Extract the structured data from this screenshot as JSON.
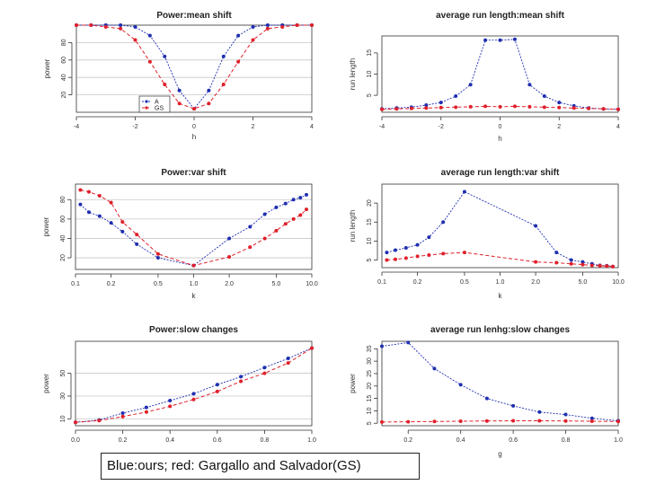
{
  "caption": "Blue:ours; red: Gargallo and Salvador(GS)",
  "colors": {
    "ours": "#1f2fb0",
    "gs": "#e0202a"
  },
  "chart_data": [
    {
      "type": "line",
      "title": "Power:mean shift",
      "xlabel": "h",
      "ylabel": "power",
      "x": [
        -4,
        -3.5,
        -3,
        -2.5,
        -2,
        -1.5,
        -1,
        -0.5,
        0,
        0.5,
        1,
        1.5,
        2,
        2.5,
        3,
        3.5,
        4
      ],
      "xlim": [
        -4,
        4
      ],
      "ylim": [
        0,
        100
      ],
      "xticks": [
        -4,
        -2,
        0,
        2,
        4
      ],
      "xtick_labels": [
        "-4",
        "-2",
        "0",
        "2",
        "4"
      ],
      "yticks": [
        20,
        40,
        60,
        80
      ],
      "ytick_labels": [
        "20",
        "40",
        "60",
        "80"
      ],
      "grid": true,
      "legend": {
        "position": "bottom-left",
        "entries": [
          "A",
          "GS"
        ]
      },
      "series": [
        {
          "name": "A",
          "values": [
            100,
            100,
            100,
            100,
            98,
            88,
            64,
            25,
            4,
            25,
            64,
            88,
            98,
            100,
            100,
            100,
            100
          ]
        },
        {
          "name": "GS",
          "values": [
            100,
            100,
            98,
            96,
            83,
            58,
            32,
            10,
            4,
            10,
            32,
            58,
            83,
            96,
            98,
            100,
            100
          ]
        }
      ]
    },
    {
      "type": "line",
      "title": "average run length:mean shift",
      "xlabel": "h",
      "ylabel": "run length",
      "x": [
        -4,
        -3.5,
        -3,
        -2.5,
        -2,
        -1.5,
        -1,
        -0.5,
        0,
        0.5,
        1,
        1.5,
        2,
        2.5,
        3,
        3.5,
        4
      ],
      "xlim": [
        -4,
        4
      ],
      "ylim": [
        1,
        19
      ],
      "xticks": [
        -4,
        -2,
        0,
        2,
        4
      ],
      "xtick_labels": [
        "-4",
        "-2",
        "0",
        "2",
        "4"
      ],
      "yticks": [
        5,
        10,
        15
      ],
      "ytick_labels": [
        "5",
        "10",
        "15"
      ],
      "grid": false,
      "series": [
        {
          "values": [
            1.8,
            2.0,
            2.2,
            2.7,
            3.3,
            4.8,
            7.5,
            18,
            18,
            18.2,
            7.5,
            4.8,
            3.3,
            2.5,
            2.0,
            1.8,
            1.7
          ]
        },
        {
          "values": [
            1.7,
            1.8,
            1.9,
            2.0,
            2.1,
            2.2,
            2.3,
            2.4,
            2.3,
            2.4,
            2.3,
            2.2,
            2.1,
            2.0,
            1.9,
            1.8,
            1.7
          ]
        }
      ]
    },
    {
      "type": "line",
      "title": "Power:var shift",
      "xlabel": "k",
      "ylabel": "power",
      "xscale": "log",
      "x": [
        0.11,
        0.13,
        0.16,
        0.2,
        0.25,
        0.33,
        0.5,
        1.0,
        2.0,
        3.0,
        4.0,
        5.0,
        6.0,
        7.0,
        8.0,
        9.0
      ],
      "xlim": [
        0.1,
        10
      ],
      "ylim": [
        8,
        96
      ],
      "xticks": [
        0.1,
        0.2,
        0.5,
        1.0,
        2.0,
        5.0,
        10.0
      ],
      "xtick_labels": [
        "0.1",
        "0.2",
        "0.5",
        "1.0",
        "2.0",
        "5.0",
        "10.0"
      ],
      "yticks": [
        20,
        40,
        60,
        80
      ],
      "ytick_labels": [
        "20",
        "40",
        "60",
        "80"
      ],
      "grid": true,
      "series": [
        {
          "values": [
            75,
            67,
            63,
            56,
            47,
            34,
            20,
            12,
            40,
            52,
            65,
            72,
            76,
            80,
            82,
            85
          ]
        },
        {
          "values": [
            90,
            88,
            84,
            77,
            57,
            44,
            24,
            12,
            21,
            31,
            40,
            48,
            55,
            60,
            64,
            70
          ]
        }
      ]
    },
    {
      "type": "line",
      "title": "average run length:var shift",
      "xlabel": "k",
      "ylabel": "run length",
      "xscale": "log",
      "x": [
        0.11,
        0.13,
        0.16,
        0.2,
        0.25,
        0.33,
        0.5,
        2.0,
        3.0,
        4.0,
        5.0,
        6.0,
        7.0,
        8.0,
        9.0
      ],
      "xlim": [
        0.1,
        10
      ],
      "ylim": [
        3,
        25
      ],
      "xticks": [
        0.1,
        0.2,
        0.5,
        1.0,
        2.0,
        5.0,
        10.0
      ],
      "xtick_labels": [
        "0.1",
        "0.2",
        "0.5",
        "1.0",
        "2.0",
        "5.0",
        "10.0"
      ],
      "yticks": [
        5,
        10,
        15,
        20
      ],
      "ytick_labels": [
        "5",
        "10",
        "15",
        "20"
      ],
      "grid": false,
      "series": [
        {
          "values": [
            7.0,
            7.6,
            8.2,
            9.0,
            11.0,
            15.0,
            23.0,
            14.0,
            7.0,
            5.0,
            4.5,
            4.0,
            3.6,
            3.5,
            3.3
          ]
        },
        {
          "values": [
            5.0,
            5.2,
            5.5,
            6.0,
            6.3,
            6.7,
            7.0,
            4.5,
            4.3,
            4.0,
            3.8,
            3.6,
            3.5,
            3.4,
            3.3
          ]
        }
      ]
    },
    {
      "type": "line",
      "title": "Power:slow changes",
      "xlabel": "",
      "ylabel": "power",
      "x": [
        0.0,
        0.1,
        0.2,
        0.3,
        0.4,
        0.5,
        0.6,
        0.7,
        0.8,
        0.9,
        1.0
      ],
      "xlim": [
        0,
        1
      ],
      "ylim": [
        4,
        78
      ],
      "xticks": [
        0.0,
        0.2,
        0.4,
        0.6,
        0.8,
        1.0
      ],
      "xtick_labels": [
        "0.0",
        "0.2",
        "0.4",
        "0.6",
        "0.8",
        "1.0"
      ],
      "yticks": [
        10,
        30,
        50
      ],
      "ytick_labels": [
        "10",
        "30",
        "50"
      ],
      "grid": true,
      "series": [
        {
          "values": [
            7,
            9,
            15,
            20,
            26,
            32,
            40,
            47,
            55,
            63,
            72
          ]
        },
        {
          "values": [
            7,
            8.5,
            12,
            16,
            21,
            27,
            34,
            43,
            50,
            59,
            72
          ]
        }
      ]
    },
    {
      "type": "line",
      "title": "average run lenhg:slow changes",
      "xlabel": "g",
      "ylabel": "power",
      "x": [
        0.1,
        0.2,
        0.3,
        0.4,
        0.5,
        0.6,
        0.7,
        0.8,
        0.9,
        1.0
      ],
      "xlim": [
        0.1,
        1.0
      ],
      "ylim": [
        4,
        38
      ],
      "xticks": [
        0.2,
        0.4,
        0.6,
        0.8,
        1.0
      ],
      "xtick_labels": [
        "0.2",
        "0.4",
        "0.6",
        "0.8",
        "1.0"
      ],
      "yticks": [
        5,
        10,
        15,
        20,
        25,
        30,
        35
      ],
      "ytick_labels": [
        "5",
        "10",
        "15",
        "20",
        "25",
        "30",
        "35"
      ],
      "grid": false,
      "series": [
        {
          "values": [
            36,
            37.5,
            27,
            20.5,
            15,
            12,
            9.5,
            8.5,
            7,
            6
          ]
        },
        {
          "values": [
            5.5,
            5.6,
            5.7,
            5.8,
            5.9,
            6.0,
            6.0,
            5.9,
            5.8,
            5.7
          ]
        }
      ]
    }
  ]
}
